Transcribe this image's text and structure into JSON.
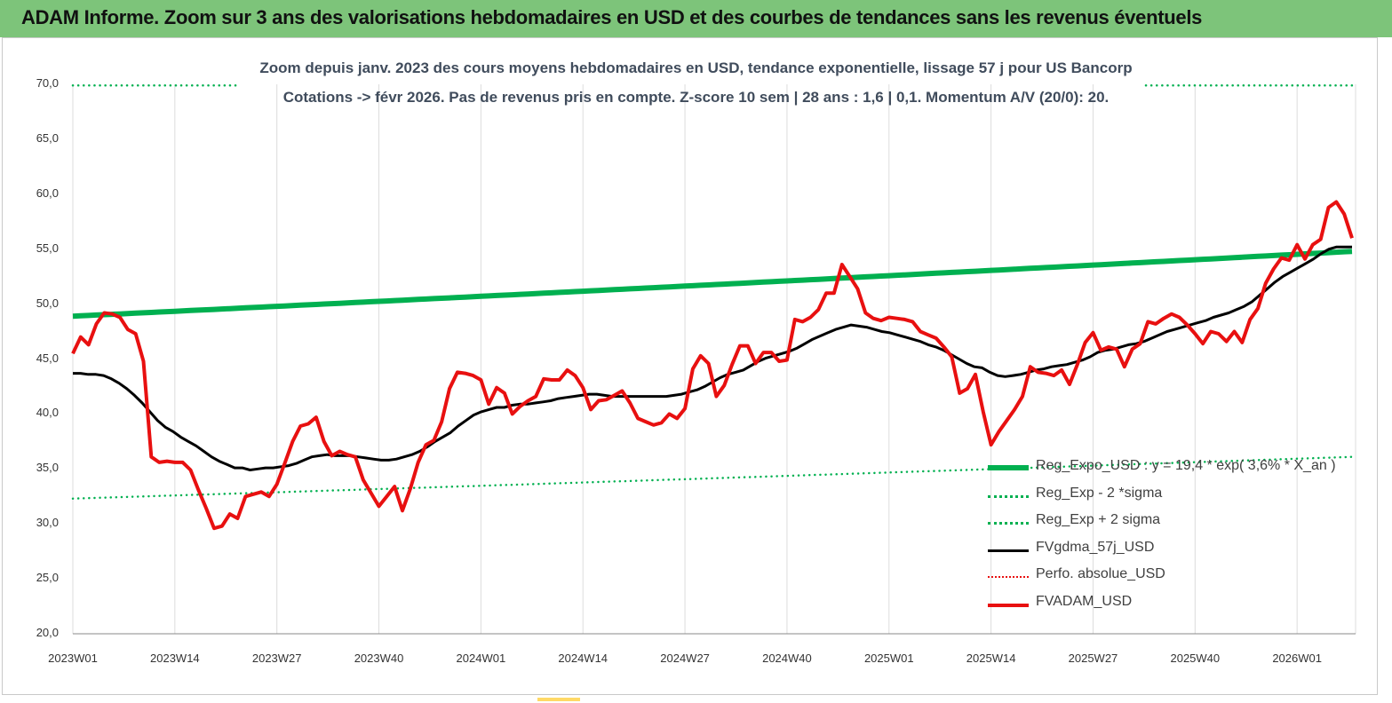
{
  "header": {
    "title": "ADAM Informe. Zoom sur 3 ans des valorisations hebdomadaires en USD et des courbes de tendances sans les revenus éventuels"
  },
  "chart_data": {
    "type": "line",
    "title": "Zoom depuis janv. 2023  des cours moyens hebdomadaires en USD, tendance exponentielle, lissage 57 j pour US Bancorp",
    "subtitle": "Cotations -> févr 2026.  Pas de revenus pris en compte. Z-score 10 sem  | 28 ans : 1,6  | 0,1. Momentum A/V (20/0): 20.",
    "xlabel": "",
    "ylabel": "",
    "ylim": [
      20,
      70
    ],
    "yticks": [
      "20,0",
      "25,0",
      "30,0",
      "35,0",
      "40,0",
      "45,0",
      "50,0",
      "55,0",
      "60,0",
      "65,0",
      "70,0"
    ],
    "xticks": [
      "2023W01",
      "2023W14",
      "2023W27",
      "2023W40",
      "2024W01",
      "2024W14",
      "2024W27",
      "2024W40",
      "2025W01",
      "2025W14",
      "2025W27",
      "2025W40",
      "2026W01"
    ],
    "x_start_week": "2023W01",
    "x_end_week": "2026W07",
    "grid": "vertical",
    "legend_position": "bottom-right",
    "series": [
      {
        "name": "Reg_Expo_USD : y = 19,4 * exp( 3,6% *  X_an )",
        "color": "#00b050",
        "style": "solid-thick",
        "values": [
          48.9,
          54.8
        ]
      },
      {
        "name": "Reg_Exp - 2 *sigma",
        "color": "#00b050",
        "style": "dotted",
        "values": [
          32.3,
          36.1
        ]
      },
      {
        "name": "Reg_Exp + 2 sigma",
        "color": "#00b050",
        "style": "dotted",
        "values": [
          69.9,
          69.9
        ]
      },
      {
        "name": "FVgdma_57j_USD",
        "color": "#000000",
        "style": "solid",
        "values": [
          43.7,
          43.7,
          43.6,
          43.6,
          43.5,
          43.2,
          42.8,
          42.3,
          41.7,
          41.0,
          40.2,
          39.4,
          38.8,
          38.4,
          37.9,
          37.5,
          37.1,
          36.6,
          36.1,
          35.7,
          35.4,
          35.1,
          35.1,
          34.9,
          35.0,
          35.1,
          35.1,
          35.2,
          35.3,
          35.5,
          35.8,
          36.1,
          36.2,
          36.3,
          36.2,
          36.2,
          36.2,
          36.1,
          36.0,
          35.9,
          35.8,
          35.8,
          35.9,
          36.1,
          36.3,
          36.6,
          37.0,
          37.5,
          37.9,
          38.3,
          38.9,
          39.4,
          39.9,
          40.2,
          40.4,
          40.6,
          40.6,
          40.8,
          40.9,
          40.9,
          41.0,
          41.1,
          41.2,
          41.4,
          41.5,
          41.6,
          41.7,
          41.8,
          41.8,
          41.7,
          41.6,
          41.6,
          41.6,
          41.6,
          41.6,
          41.6,
          41.6,
          41.6,
          41.7,
          41.8,
          42.0,
          42.2,
          42.5,
          42.9,
          43.3,
          43.6,
          43.8,
          44.0,
          44.4,
          44.8,
          45.1,
          45.3,
          45.5,
          45.7,
          46.0,
          46.4,
          46.8,
          47.1,
          47.4,
          47.7,
          47.9,
          48.1,
          48.0,
          47.9,
          47.7,
          47.5,
          47.4,
          47.2,
          47.0,
          46.8,
          46.6,
          46.3,
          46.1,
          45.8,
          45.4,
          45.0,
          44.6,
          44.3,
          44.2,
          43.8,
          43.5,
          43.4,
          43.5,
          43.6,
          43.8,
          44.0,
          44.1,
          44.3,
          44.4,
          44.5,
          44.7,
          44.9,
          45.2,
          45.6,
          45.8,
          45.9,
          46.1,
          46.3,
          46.4,
          46.6,
          46.9,
          47.2,
          47.5,
          47.7,
          47.9,
          48.1,
          48.3,
          48.5,
          48.8,
          49.0,
          49.2,
          49.5,
          49.8,
          50.2,
          50.8,
          51.4,
          52.0,
          52.5,
          52.9,
          53.3,
          53.7,
          54.1,
          54.6,
          55.0,
          55.2,
          55.2,
          55.2
        ]
      },
      {
        "name": "Perfo. absolue_USD",
        "color": "#e81010",
        "style": "dotted",
        "values": []
      },
      {
        "name": "FVADAM_USD",
        "color": "#e81010",
        "style": "solid-thick",
        "values": [
          45.5,
          47.0,
          46.3,
          48.2,
          49.2,
          49.1,
          48.8,
          47.7,
          47.3,
          44.8,
          36.1,
          35.6,
          35.7,
          35.6,
          35.6,
          34.9,
          33.1,
          31.4,
          29.6,
          29.8,
          30.9,
          30.5,
          32.5,
          32.7,
          32.9,
          32.5,
          33.6,
          35.5,
          37.5,
          38.9,
          39.1,
          39.7,
          37.5,
          36.2,
          36.6,
          36.3,
          36.1,
          34.0,
          32.8,
          31.6,
          32.5,
          33.4,
          31.2,
          33.2,
          35.6,
          37.2,
          37.6,
          39.3,
          42.3,
          43.8,
          43.7,
          43.5,
          43.1,
          40.9,
          42.4,
          41.9,
          40.0,
          40.7,
          41.2,
          41.6,
          43.2,
          43.1,
          43.1,
          44.0,
          43.5,
          42.4,
          40.4,
          41.2,
          41.3,
          41.7,
          42.1,
          41.0,
          39.6,
          39.3,
          39.0,
          39.2,
          40.0,
          39.6,
          40.5,
          44.1,
          45.3,
          44.6,
          41.6,
          42.6,
          44.5,
          46.2,
          46.2,
          44.6,
          45.6,
          45.6,
          44.8,
          44.9,
          48.6,
          48.4,
          48.8,
          49.5,
          51.0,
          51.0,
          53.6,
          52.5,
          51.4,
          49.2,
          48.7,
          48.5,
          48.8,
          48.7,
          48.6,
          48.4,
          47.5,
          47.2,
          46.9,
          46.1,
          45.2,
          41.9,
          42.3,
          43.6,
          40.2,
          37.2,
          38.4,
          39.4,
          40.4,
          41.6,
          44.3,
          43.8,
          43.7,
          43.5,
          44.0,
          42.7,
          44.5,
          46.5,
          47.4,
          45.8,
          46.1,
          45.9,
          44.3,
          45.9,
          46.4,
          48.4,
          48.2,
          48.7,
          49.1,
          48.8,
          48.1,
          47.3,
          46.4,
          47.5,
          47.3,
          46.6,
          47.5,
          46.5,
          48.6,
          49.6,
          51.9,
          53.2,
          54.2,
          54.0,
          55.4,
          54.1,
          55.4,
          55.9,
          58.8,
          59.3,
          58.2,
          56.0
        ]
      }
    ]
  }
}
